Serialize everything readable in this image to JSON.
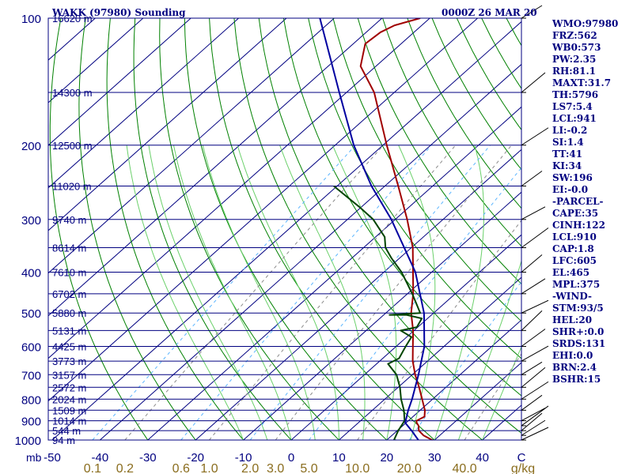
{
  "header": {
    "station": "WAKK (97980) Sounding",
    "time": "0000Z 26 MAR 20"
  },
  "indices": [
    "WMO:97980",
    "FRZ:562",
    "WB0:573",
    "PW:2.35",
    "RH:81.1",
    "MAXT:31.7",
    "TH:5796",
    "LS7:5.4",
    "LCL:941",
    "LI:-0.2",
    "SI:1.4",
    "TT:41",
    "KI:34",
    "SW:196",
    "EI:-0.0",
    "-PARCEL-",
    "CAPE:35",
    "CINH:122",
    "LCL:910",
    "CAP:1.8",
    "LFC:605",
    "EL:465",
    "MPL:375",
    "-WIND-",
    "STM:93/5",
    "HEL:20",
    "SHR+:0.0",
    "SRDS:131",
    "EHI:0.0",
    "BRN:2.4",
    "BSHR:15"
  ],
  "colors": {
    "frame": "#000080",
    "isobar": "#000080",
    "isotherm": "#000080",
    "dry_adiabat": "#008000",
    "moist_adiabat": "#6ad06a",
    "mixing_ratio": "#5bb5ff",
    "mixing_ratio_dash": "#8a8a8a",
    "temperature": "#a00000",
    "dewpoint": "#004400",
    "parcel": "#0000a0",
    "axis_text": "#000080",
    "mixing_text": "#8a6d1e",
    "wind": "#000000"
  },
  "chart_data": {
    "type": "skew-t log-p sounding",
    "pressure_axis": {
      "label": "mb",
      "ticks": [
        100,
        200,
        300,
        400,
        500,
        600,
        700,
        800,
        900,
        1000
      ],
      "range_hpa": [
        100,
        1000
      ],
      "scale": "log"
    },
    "temperature_axis": {
      "label": "C",
      "ticks": [
        -50,
        -40,
        -30,
        -20,
        -10,
        0,
        10,
        20,
        30,
        40
      ],
      "range_c_at_1000hpa": [
        -50,
        50
      ]
    },
    "mixing_ratio_labels": {
      "label": "g/kg",
      "values": [
        "0.1",
        "0.2",
        "0.6",
        "1.0",
        "2.0",
        "3.0",
        "5.0",
        "10.0",
        "20.0",
        "40.0"
      ]
    },
    "height_levels": [
      {
        "p": 100,
        "label": "16620 m"
      },
      {
        "p": 150,
        "label": "14300 m"
      },
      {
        "p": 200,
        "label": "12500 m"
      },
      {
        "p": 250,
        "label": "11020 m"
      },
      {
        "p": 300,
        "label": "9740 m"
      },
      {
        "p": 350,
        "label": "8614 m"
      },
      {
        "p": 400,
        "label": "7610 m"
      },
      {
        "p": 450,
        "label": "6702 m"
      },
      {
        "p": 500,
        "label": "5880 m"
      },
      {
        "p": 550,
        "label": "5131 m"
      },
      {
        "p": 600,
        "label": "4425 m"
      },
      {
        "p": 650,
        "label": "3773 m"
      },
      {
        "p": 700,
        "label": "3157 m"
      },
      {
        "p": 750,
        "label": "2572 m"
      },
      {
        "p": 800,
        "label": "2024 m"
      },
      {
        "p": 850,
        "label": "1509 m"
      },
      {
        "p": 900,
        "label": "1014 m"
      },
      {
        "p": 950,
        "label": "544 m"
      },
      {
        "p": 1000,
        "label": "94 m"
      }
    ],
    "series": [
      {
        "name": "temperature",
        "points": [
          {
            "p": 1005,
            "t": 30.5
          },
          {
            "p": 1000,
            "t": 29.5
          },
          {
            "p": 975,
            "t": 26.6
          },
          {
            "p": 950,
            "t": 24.5
          },
          {
            "p": 925,
            "t": 23.3
          },
          {
            "p": 910,
            "t": 22.2
          },
          {
            "p": 900,
            "t": 21.7
          },
          {
            "p": 880,
            "t": 22.4
          },
          {
            "p": 850,
            "t": 21.0
          },
          {
            "p": 800,
            "t": 17.8
          },
          {
            "p": 750,
            "t": 14.4
          },
          {
            "p": 700,
            "t": 10.6
          },
          {
            "p": 650,
            "t": 6.9
          },
          {
            "p": 600,
            "t": 3.5
          },
          {
            "p": 550,
            "t": -0.2
          },
          {
            "p": 500,
            "t": -4.7
          },
          {
            "p": 450,
            "t": -8.8
          },
          {
            "p": 400,
            "t": -13.9
          },
          {
            "p": 350,
            "t": -19.7
          },
          {
            "p": 300,
            "t": -27.5
          },
          {
            "p": 250,
            "t": -37.2
          },
          {
            "p": 200,
            "t": -49.2
          },
          {
            "p": 150,
            "t": -64.2
          },
          {
            "p": 130,
            "t": -73.2
          },
          {
            "p": 115,
            "t": -77.5
          },
          {
            "p": 108,
            "t": -77.0
          },
          {
            "p": 104,
            "t": -75.7
          },
          {
            "p": 100,
            "t": -72.0
          }
        ]
      },
      {
        "name": "dewpoint",
        "points": [
          {
            "p": 1005,
            "t": 23.0
          },
          {
            "p": 1000,
            "t": 21.5
          },
          {
            "p": 950,
            "t": 20.2
          },
          {
            "p": 900,
            "t": 19.2
          },
          {
            "p": 850,
            "t": 16.6
          },
          {
            "p": 800,
            "t": 13.4
          },
          {
            "p": 750,
            "t": 10.4
          },
          {
            "p": 700,
            "t": 6.7
          },
          {
            "p": 660,
            "t": 2.4
          },
          {
            "p": 640,
            "t": 3.4
          },
          {
            "p": 600,
            "t": 2.0
          },
          {
            "p": 570,
            "t": 1.0
          },
          {
            "p": 550,
            "t": -2.8
          },
          {
            "p": 540,
            "t": -0.2
          },
          {
            "p": 515,
            "t": -1.2
          },
          {
            "p": 505,
            "t": -5.2
          },
          {
            "p": 505,
            "t": -8.8
          },
          {
            "p": 500,
            "t": -2.8
          },
          {
            "p": 450,
            "t": -9.0
          },
          {
            "p": 400,
            "t": -16.3
          },
          {
            "p": 370,
            "t": -21.8
          },
          {
            "p": 350,
            "t": -25.4
          },
          {
            "p": 330,
            "t": -28.1
          },
          {
            "p": 300,
            "t": -34.6
          },
          {
            "p": 280,
            "t": -40.5
          },
          {
            "p": 250,
            "t": -50.7
          }
        ]
      },
      {
        "name": "parcel",
        "points": [
          {
            "p": 1000,
            "t": 26.6
          },
          {
            "p": 950,
            "t": 23.0
          },
          {
            "p": 910,
            "t": 19.8
          },
          {
            "p": 850,
            "t": 17.5
          },
          {
            "p": 800,
            "t": 15.7
          },
          {
            "p": 700,
            "t": 11.3
          },
          {
            "p": 600,
            "t": 5.9
          },
          {
            "p": 500,
            "t": -2.0
          },
          {
            "p": 400,
            "t": -13.4
          },
          {
            "p": 300,
            "t": -30.8
          },
          {
            "p": 250,
            "t": -42.8
          },
          {
            "p": 200,
            "t": -56.1
          },
          {
            "p": 150,
            "t": -71.5
          },
          {
            "p": 100,
            "t": -93.0
          }
        ]
      }
    ],
    "grid": true
  }
}
